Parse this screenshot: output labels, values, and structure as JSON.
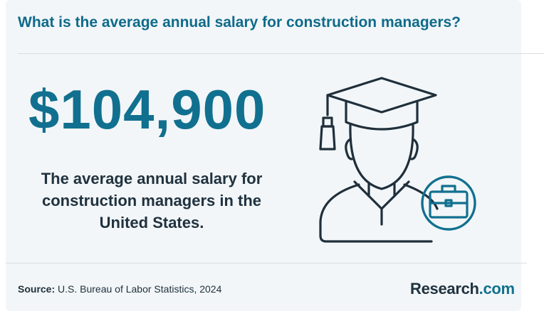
{
  "header": {
    "question": "What is the average annual salary for construction managers?"
  },
  "stat": {
    "value": "$104,900",
    "description": "The average annual salary for construction managers in the United States."
  },
  "illustration": {
    "icon": "graduate-with-briefcase-icon"
  },
  "footer": {
    "source_label": "Source:",
    "source_text": "U.S. Bureau of Labor Statistics, 2024",
    "brand_name": "Research",
    "brand_suffix": ".com"
  },
  "colors": {
    "accent": "#11708f",
    "text_dark": "#20323f",
    "background": "#f2f6f8"
  }
}
